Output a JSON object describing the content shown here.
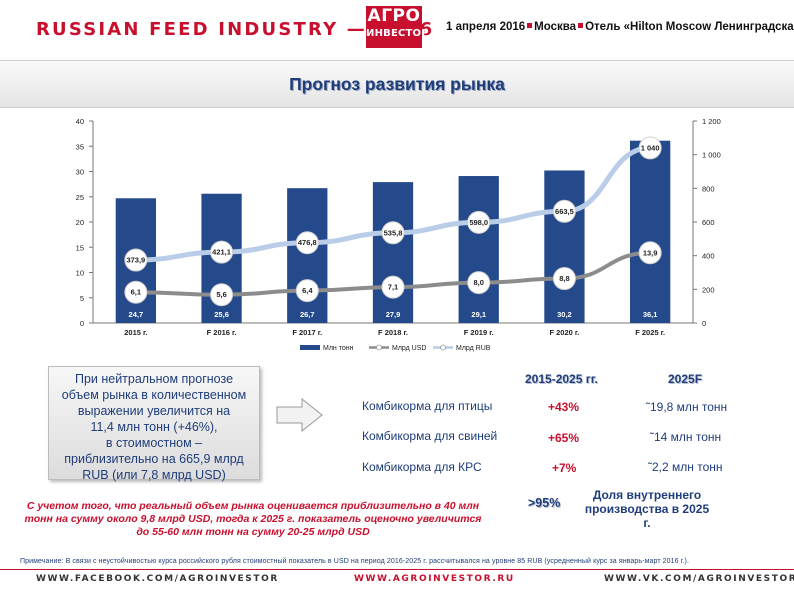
{
  "header": {
    "title": "RUSSIAN FEED INDUSTRY — 2016",
    "logo_line1": "АГРО",
    "logo_line2": "ИНВЕСТОР",
    "event_date": "1 апреля 2016",
    "event_city": "Москва",
    "event_venue": "Отель «Hilton Moscow Ленинградская»"
  },
  "slide_title": "Прогноз развития рынка",
  "chart_data": {
    "type": "bar",
    "categories": [
      "2015 г.",
      "F 2016 г.",
      "F 2017 г.",
      "F 2018 г.",
      "F 2019 г.",
      "F 2020 г.",
      "F 2025 г."
    ],
    "series": [
      {
        "name": "Млн тонн",
        "kind": "bar",
        "axis": "left",
        "values": [
          24.7,
          25.6,
          26.7,
          27.9,
          29.1,
          30.2,
          36.1
        ],
        "labels": [
          "24,7",
          "25,6",
          "26,7",
          "27,9",
          "29,1",
          "30,2",
          "36,1"
        ],
        "color": "#244a8c"
      },
      {
        "name": "Млрд USD",
        "kind": "line",
        "axis": "left",
        "values": [
          6.1,
          5.6,
          6.4,
          7.1,
          8.0,
          8.8,
          13.9
        ],
        "labels": [
          "6,1",
          "5,6",
          "6,4",
          "7,1",
          "8,0",
          "8,8",
          "13,9"
        ],
        "color": "#8c8c8c"
      },
      {
        "name": "Млрд RUB",
        "kind": "line",
        "axis": "right",
        "values": [
          373.9,
          421.1,
          476.8,
          535.8,
          598.0,
          663.5,
          1040
        ],
        "labels": [
          "373,9",
          "421,1",
          "476,8",
          "535,8",
          "598,0",
          "663,5",
          "1 040"
        ],
        "color": "#b9cde8"
      }
    ],
    "left_axis": {
      "min": 0,
      "max": 40,
      "ticks": [
        "0",
        "5",
        "10",
        "15",
        "20",
        "25",
        "30",
        "35",
        "40"
      ]
    },
    "right_axis": {
      "min": 0,
      "max": 1200,
      "ticks": [
        "0",
        "200",
        "400",
        "600",
        "800",
        "1 000",
        "1 200"
      ]
    },
    "legend": [
      "Млн тонн",
      "Млрд USD",
      "Млрд RUB"
    ]
  },
  "summary_box": "При нейтральном прогнозе\nобъем рынка в количественном\nвыражении увеличится на\n11,4 млн тонн (+46%),\nв стоимостном –\nприблизительно на 665,9 млрд\nRUB (или 7,8 млрд USD)",
  "table": {
    "col1_header": "2015-2025 гг.",
    "col2_header": "2025F",
    "rows": [
      {
        "name": "Комбикорма для птицы",
        "growth": "+43%",
        "volume": "˜19,8 млн тонн"
      },
      {
        "name": "Комбикорма для свиней",
        "growth": "+65%",
        "volume": "˜14 млн тонн"
      },
      {
        "name": "Комбикорма для КРС",
        "growth": "+7%",
        "volume": "˜2,2 млн тонн"
      }
    ],
    "share_value": ">95%",
    "share_label": "Доля внутреннего производства в 2025 г."
  },
  "red_note": "С учетом того, что реальный объем рынка оценивается приблизительно в 40 млн тонн на сумму около  9,8 млрд USD, тогда к 2025 г. показатель оценочно увеличится до 55-60 млн тонн на сумму 20-25 млрд USD",
  "footnote": "Примечание:  В связи с неустойчивостью курса российского рубля  стоимостный  показатель в USD на период  2016-2025 г. рассчитывался на уровне 85 RUB (усредненный курс за январь-март 2016 г.).",
  "footer": {
    "left": "WWW.FACEBOOK.COM/AGROINVESTOR",
    "center": "WWW.AGROINVESTOR.RU",
    "right": "WWW.VK.COM/AGROINVESTOR"
  }
}
